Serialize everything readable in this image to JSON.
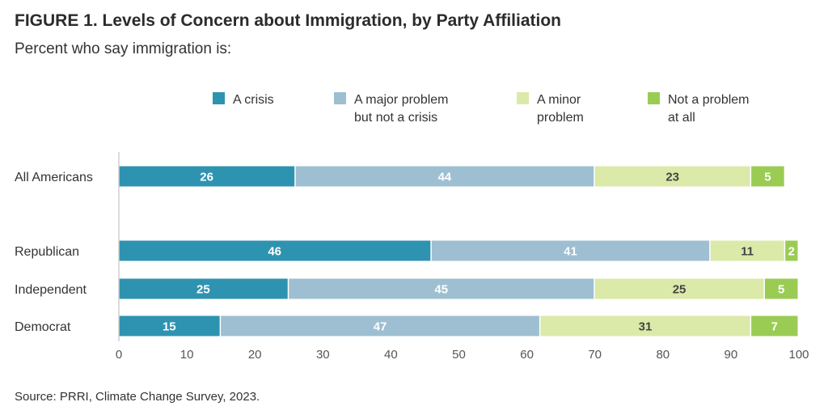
{
  "title": "FIGURE 1. Levels of Concern about Immigration, by Party Affiliation",
  "subtitle": "Percent who say immigration is:",
  "source": "Source: PRRI, Climate Change Survey, 2023.",
  "chart_data": {
    "type": "bar",
    "orientation": "horizontal",
    "stacked": true,
    "title": "FIGURE 1. Levels of Concern about Immigration, by Party Affiliation",
    "subtitle": "Percent who say immigration is:",
    "categories": [
      "All Americans",
      "Republican",
      "Independent",
      "Democrat"
    ],
    "series": [
      {
        "name": "A crisis",
        "legend_lines": [
          "A crisis"
        ],
        "color": "#2e93b0",
        "label_color": "#ffffff",
        "values": [
          26,
          46,
          25,
          15
        ]
      },
      {
        "name": "A major problem but not a crisis",
        "legend_lines": [
          "A major problem",
          "but not a crisis"
        ],
        "color": "#9dbfd1",
        "label_color": "#ffffff",
        "values": [
          44,
          41,
          45,
          47
        ]
      },
      {
        "name": "A minor problem",
        "legend_lines": [
          "A minor",
          "problem"
        ],
        "color": "#dbe9a9",
        "label_color": "#444444",
        "values": [
          23,
          11,
          25,
          31
        ]
      },
      {
        "name": "Not a problem at all",
        "legend_lines": [
          "Not a problem",
          "at all"
        ],
        "color": "#9acc54",
        "label_color": "#ffffff",
        "values": [
          5,
          2,
          5,
          7
        ]
      }
    ],
    "xlim": [
      0,
      100
    ],
    "xticks": [
      0,
      10,
      20,
      30,
      40,
      50,
      60,
      70,
      80,
      90,
      100
    ],
    "legend_position": "top",
    "grid": false
  }
}
